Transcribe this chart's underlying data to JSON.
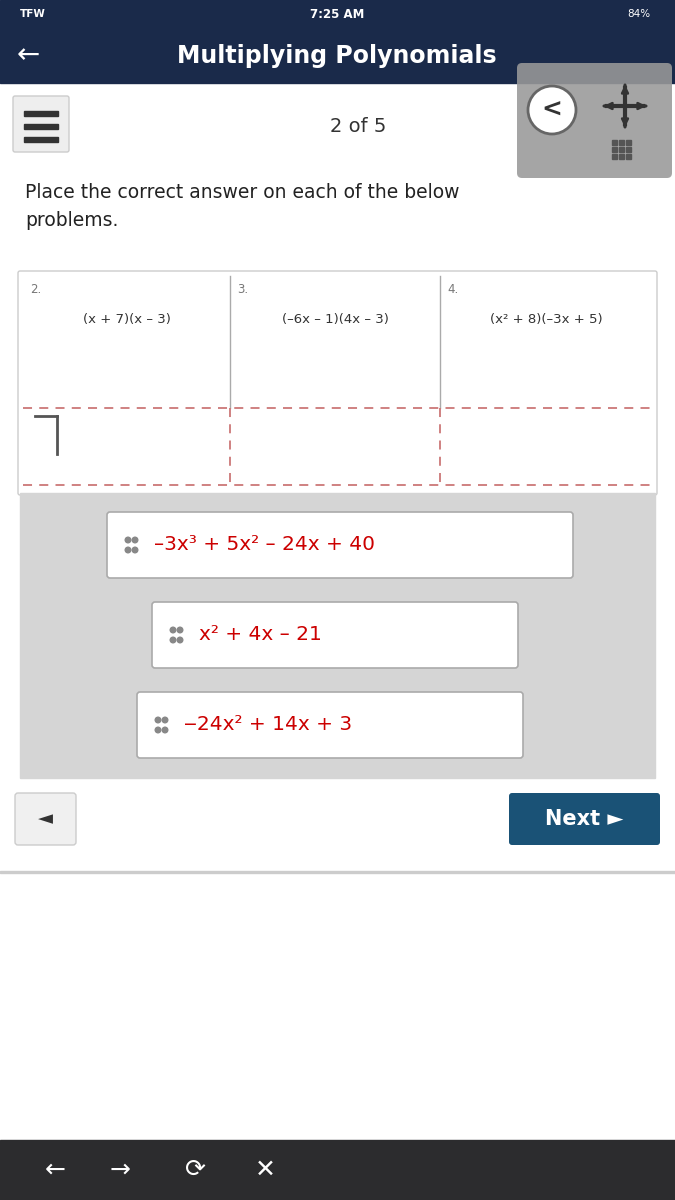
{
  "bg_color": "#f5f5f5",
  "header_color": "#1a2a4a",
  "header_text": "Multiplying Polynomials",
  "status_bar_text": "7:25 AM",
  "status_bar_right": "84%",
  "status_bar_left": "TFW",
  "page_indicator": "2 of 5",
  "instruction_text": "Place the correct answer on each of the below\nproblems.",
  "problems": [
    {
      "num": "2.",
      "expr": "(x + 7)(x – 3)"
    },
    {
      "num": "3.",
      "expr": "(–6x – 1)(4x – 3)"
    },
    {
      "num": "4.",
      "expr": "(x² + 8)(–3x + 5)"
    }
  ],
  "answers": [
    "–3x³ + 5x² – 24x + 40",
    "x² + 4x – 21",
    "‒24x² + 14x + 3"
  ],
  "answer_color": "#cc0000",
  "next_btn_color": "#1a5276",
  "next_btn_text": "Next ►",
  "bottom_bar_color": "#2c2c2e",
  "card_bg": "#f0f0f0",
  "problem_border": "#cccccc"
}
